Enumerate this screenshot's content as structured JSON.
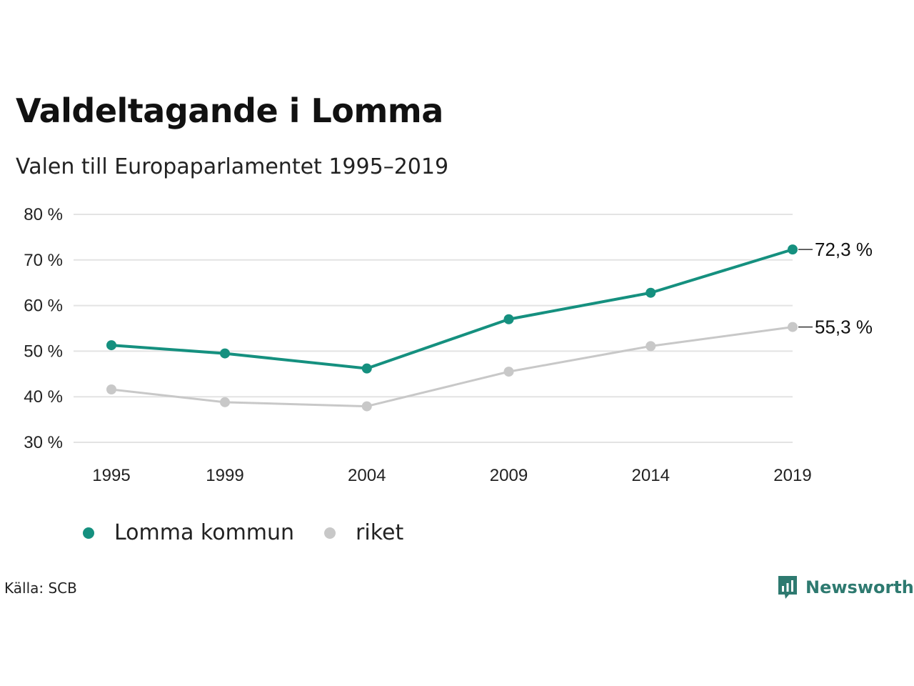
{
  "title": "Valdeltagande i Lomma",
  "subtitle": "Valen till Europaparlamentet 1995–2019",
  "source": "Källa: SCB",
  "brand": "Newsworthy",
  "colors": {
    "lomma": "#15907f",
    "riket": "#c8c8c8",
    "grid": "#e3e3e3",
    "brand": "#2e7a70"
  },
  "chart_data": {
    "type": "line",
    "title": "Valdeltagande i Lomma",
    "subtitle": "Valen till Europaparlamentet 1995–2019",
    "x": [
      1995,
      1999,
      2004,
      2009,
      2014,
      2019
    ],
    "ylim": [
      30,
      80
    ],
    "yticks": [
      30,
      40,
      50,
      60,
      70,
      80
    ],
    "ytick_labels": [
      "30 %",
      "40 %",
      "50 %",
      "60 %",
      "70 %",
      "80 %"
    ],
    "grid": true,
    "legend_position": "bottom-left",
    "series": [
      {
        "name": "Lomma kommun",
        "values": [
          51.3,
          49.5,
          46.2,
          57.0,
          62.8,
          72.3
        ],
        "end_label": "72,3 %"
      },
      {
        "name": "riket",
        "values": [
          41.6,
          38.8,
          37.9,
          45.5,
          51.1,
          55.3
        ],
        "end_label": "55,3 %"
      }
    ]
  }
}
